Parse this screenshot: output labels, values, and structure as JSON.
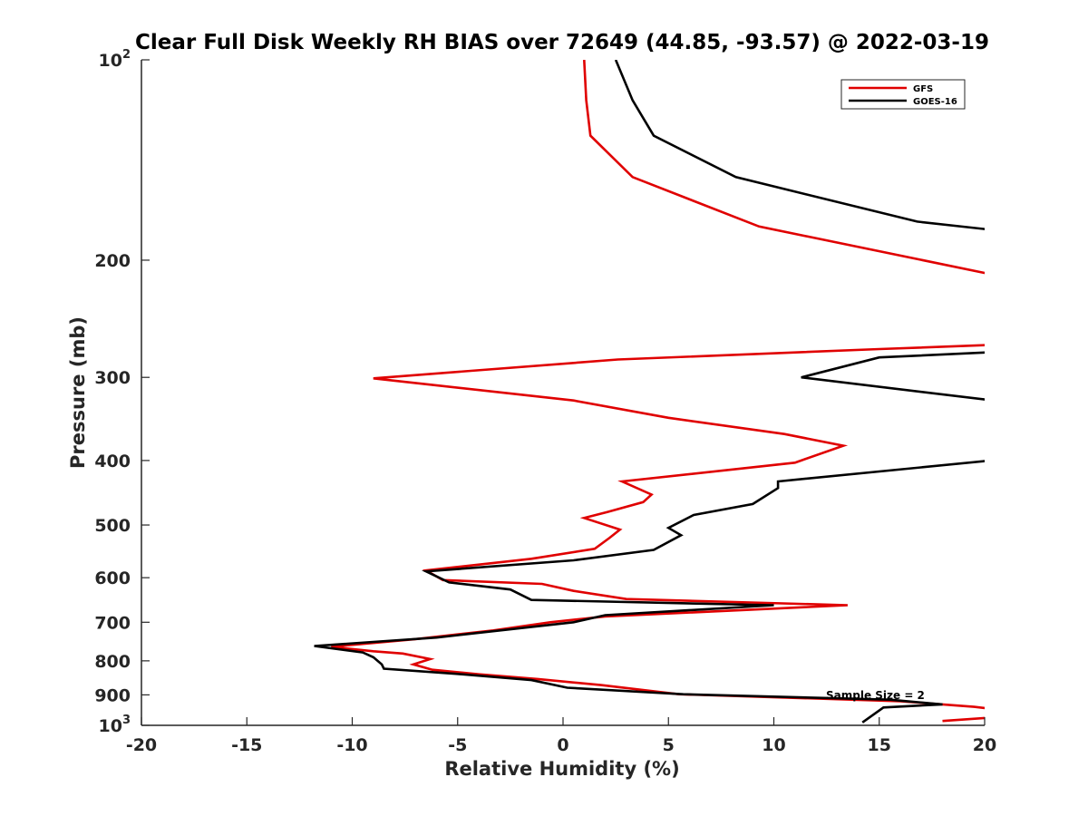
{
  "chart_data": {
    "type": "line",
    "title": "Clear Full Disk Weekly RH BIAS over 72649 (44.85, -93.57) @ 2022-03-19",
    "xlabel": "Relative Humidity (%)",
    "ylabel": "Pressure (mb)",
    "xlim": [
      -20,
      20
    ],
    "ylim": [
      100,
      1000
    ],
    "y_scale": "log",
    "y_reversed": true,
    "x_ticks": [
      "-20",
      "-15",
      "-10",
      "-5",
      "0",
      "5",
      "10",
      "15",
      "20"
    ],
    "y_ticks": [
      {
        "value": 100,
        "base": "10",
        "exp": "2"
      },
      {
        "value": 200,
        "base": "200",
        "exp": ""
      },
      {
        "value": 300,
        "base": "300",
        "exp": ""
      },
      {
        "value": 400,
        "base": "400",
        "exp": ""
      },
      {
        "value": 500,
        "base": "500",
        "exp": ""
      },
      {
        "value": 600,
        "base": "600",
        "exp": ""
      },
      {
        "value": 700,
        "base": "700",
        "exp": ""
      },
      {
        "value": 800,
        "base": "800",
        "exp": ""
      },
      {
        "value": 900,
        "base": "900",
        "exp": ""
      },
      {
        "value": 1000,
        "base": "10",
        "exp": "3"
      }
    ],
    "grid": false,
    "legend_position": "top-right",
    "annotation": "Sample Size = 2",
    "series": [
      {
        "name": "GFS",
        "color": "#e00000",
        "points": [
          [
            1.0,
            100
          ],
          [
            1.1,
            115
          ],
          [
            1.3,
            130
          ],
          [
            3.3,
            150
          ],
          [
            9.3,
            178
          ],
          [
            20.3,
            210
          ],
          [
            null,
            null
          ],
          [
            20.5,
            268
          ],
          [
            15.0,
            272
          ],
          [
            2.6,
            282
          ],
          [
            -9.0,
            301
          ],
          [
            0.5,
            325
          ],
          [
            5.0,
            345
          ],
          [
            10.5,
            365
          ],
          [
            13.3,
            380
          ],
          [
            11.0,
            403
          ],
          [
            2.8,
            430
          ],
          [
            4.2,
            450
          ],
          [
            3.8,
            462
          ],
          [
            2.1,
            478
          ],
          [
            1.0,
            488
          ],
          [
            2.7,
            508
          ],
          [
            2.2,
            523
          ],
          [
            1.5,
            543
          ],
          [
            -1.5,
            562
          ],
          [
            -6.5,
            585
          ],
          [
            -5.7,
            605
          ],
          [
            -1.0,
            613
          ],
          [
            0.5,
            628
          ],
          [
            3.0,
            646
          ],
          [
            13.5,
            660
          ],
          [
            2.0,
            686
          ],
          [
            -0.6,
            700
          ],
          [
            -3.3,
            720
          ],
          [
            -7.0,
            742
          ],
          [
            -11.0,
            762
          ],
          [
            -9.0,
            774
          ],
          [
            -7.6,
            780
          ],
          [
            -6.3,
            795
          ],
          [
            -7.1,
            810
          ],
          [
            -6.2,
            825
          ],
          [
            -4.0,
            838
          ],
          [
            -1.2,
            852
          ],
          [
            1.8,
            870
          ],
          [
            5.5,
            898
          ],
          [
            16.0,
            920
          ],
          [
            19.5,
            938
          ],
          [
            21.0,
            950
          ],
          [
            null,
            null
          ],
          [
            18.0,
            985
          ],
          [
            21.0,
            970
          ]
        ]
      },
      {
        "name": "GOES-16",
        "color": "#000000",
        "points": [
          [
            2.5,
            100
          ],
          [
            3.3,
            115
          ],
          [
            4.3,
            130
          ],
          [
            8.2,
            150
          ],
          [
            16.8,
            175
          ],
          [
            20.3,
            180
          ],
          [
            null,
            null
          ],
          [
            20.3,
            275
          ],
          [
            15.0,
            280
          ],
          [
            11.3,
            300
          ],
          [
            20.4,
            325
          ],
          [
            null,
            null
          ],
          [
            20.3,
            400
          ],
          [
            10.2,
            430
          ],
          [
            10.2,
            440
          ],
          [
            9.0,
            465
          ],
          [
            6.2,
            483
          ],
          [
            5.0,
            505
          ],
          [
            5.6,
            518
          ],
          [
            4.3,
            545
          ],
          [
            0.5,
            565
          ],
          [
            -6.5,
            587
          ],
          [
            -5.4,
            610
          ],
          [
            -2.5,
            625
          ],
          [
            -1.5,
            648
          ],
          [
            10.0,
            660
          ],
          [
            2.0,
            683
          ],
          [
            0.5,
            700
          ],
          [
            -6.0,
            738
          ],
          [
            -11.8,
            760
          ],
          [
            -9.5,
            777
          ],
          [
            -9.0,
            790
          ],
          [
            -8.6,
            810
          ],
          [
            -8.5,
            822
          ],
          [
            -5.0,
            837
          ],
          [
            -1.5,
            855
          ],
          [
            0.2,
            878
          ],
          [
            5.7,
            898
          ],
          [
            15.5,
            915
          ],
          [
            18.0,
            930
          ],
          [
            15.2,
            940
          ],
          [
            14.2,
            990
          ]
        ]
      }
    ]
  },
  "legend": [
    {
      "label": "GFS",
      "color": "#e00000"
    },
    {
      "label": "GOES-16",
      "color": "#000000"
    }
  ]
}
